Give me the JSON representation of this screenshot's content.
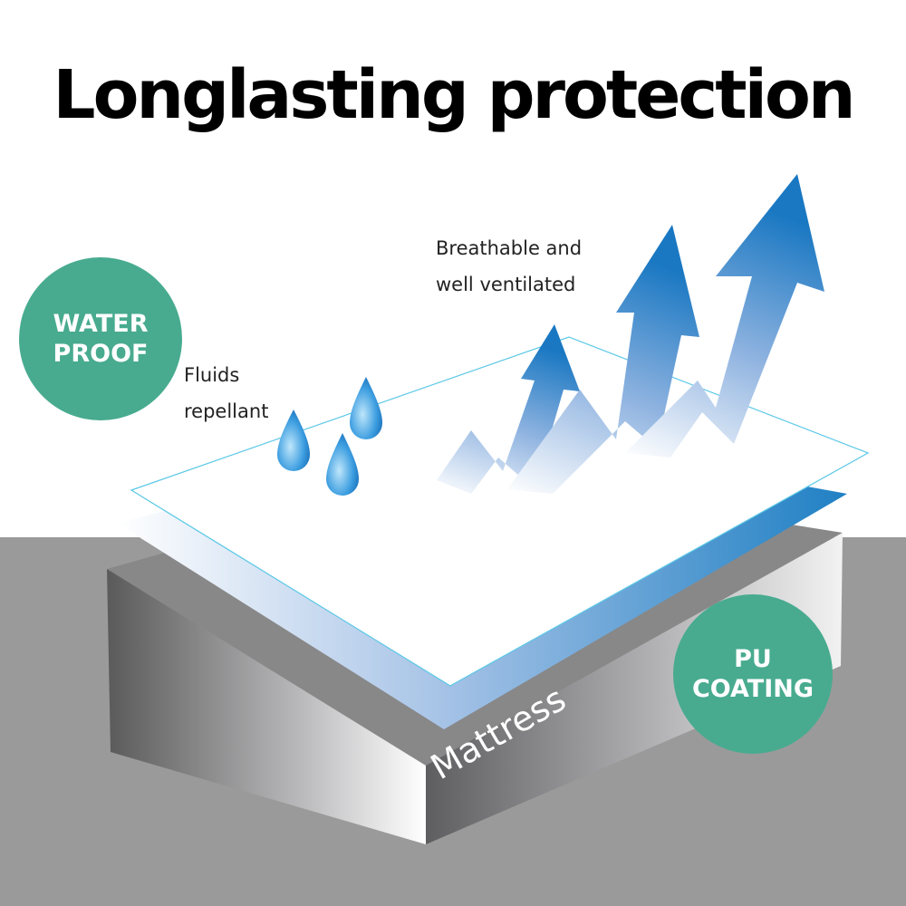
{
  "title": "Longlasting protection",
  "badges": {
    "water_proof": [
      "WATER",
      "PROOF"
    ],
    "pu_coating": [
      "PU",
      "COATING"
    ]
  },
  "labels": {
    "fluids": [
      "Fluids",
      "repellant"
    ],
    "breathable": [
      "Breathable and",
      "well ventilated"
    ],
    "mattress": "Mattress"
  },
  "colors": {
    "badge": "#48ab8f",
    "floor": "#9a9a9a",
    "blue_layer": "#2a85c6",
    "sheet_edge": "#5bc8e6"
  },
  "icons": [
    "water-drop-icon",
    "up-arrow-icon"
  ]
}
